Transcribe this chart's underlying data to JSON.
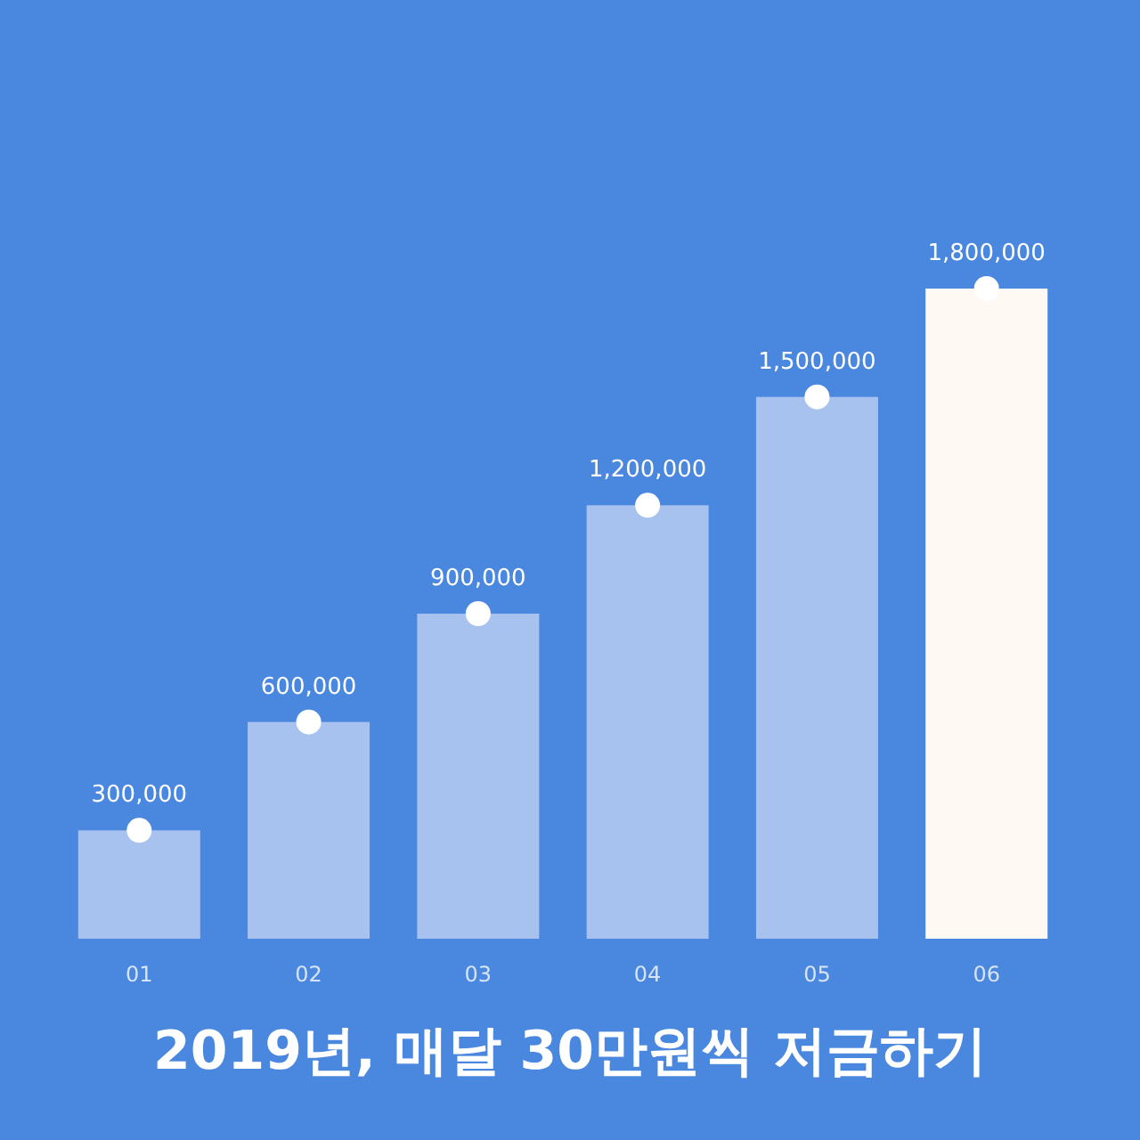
{
  "chart_data": {
    "type": "bar",
    "title": "2019년, 매달 30만원씩 저금하기",
    "categories": [
      "01",
      "02",
      "03",
      "04",
      "05",
      "06"
    ],
    "series": [
      {
        "colors": [
          "#a7c2ef",
          "#a7c2ef",
          "#a7c2ef",
          "#a7c2ef",
          "#a7c2ef",
          "#fff8f3"
        ],
        "values": [
          300000,
          600000,
          900000,
          1200000,
          1500000,
          1800000
        ]
      },
      {
        "type": "scatter",
        "color": "#ffffff",
        "values": [
          300000,
          600000,
          900000,
          1200000,
          1500000,
          1800000
        ],
        "value_labels": [
          "300,000",
          "600,000",
          "900,000",
          "1,200,000",
          "1,500,000",
          "1,800,000"
        ]
      }
    ],
    "marker": "circle",
    "grid": false
  }
}
